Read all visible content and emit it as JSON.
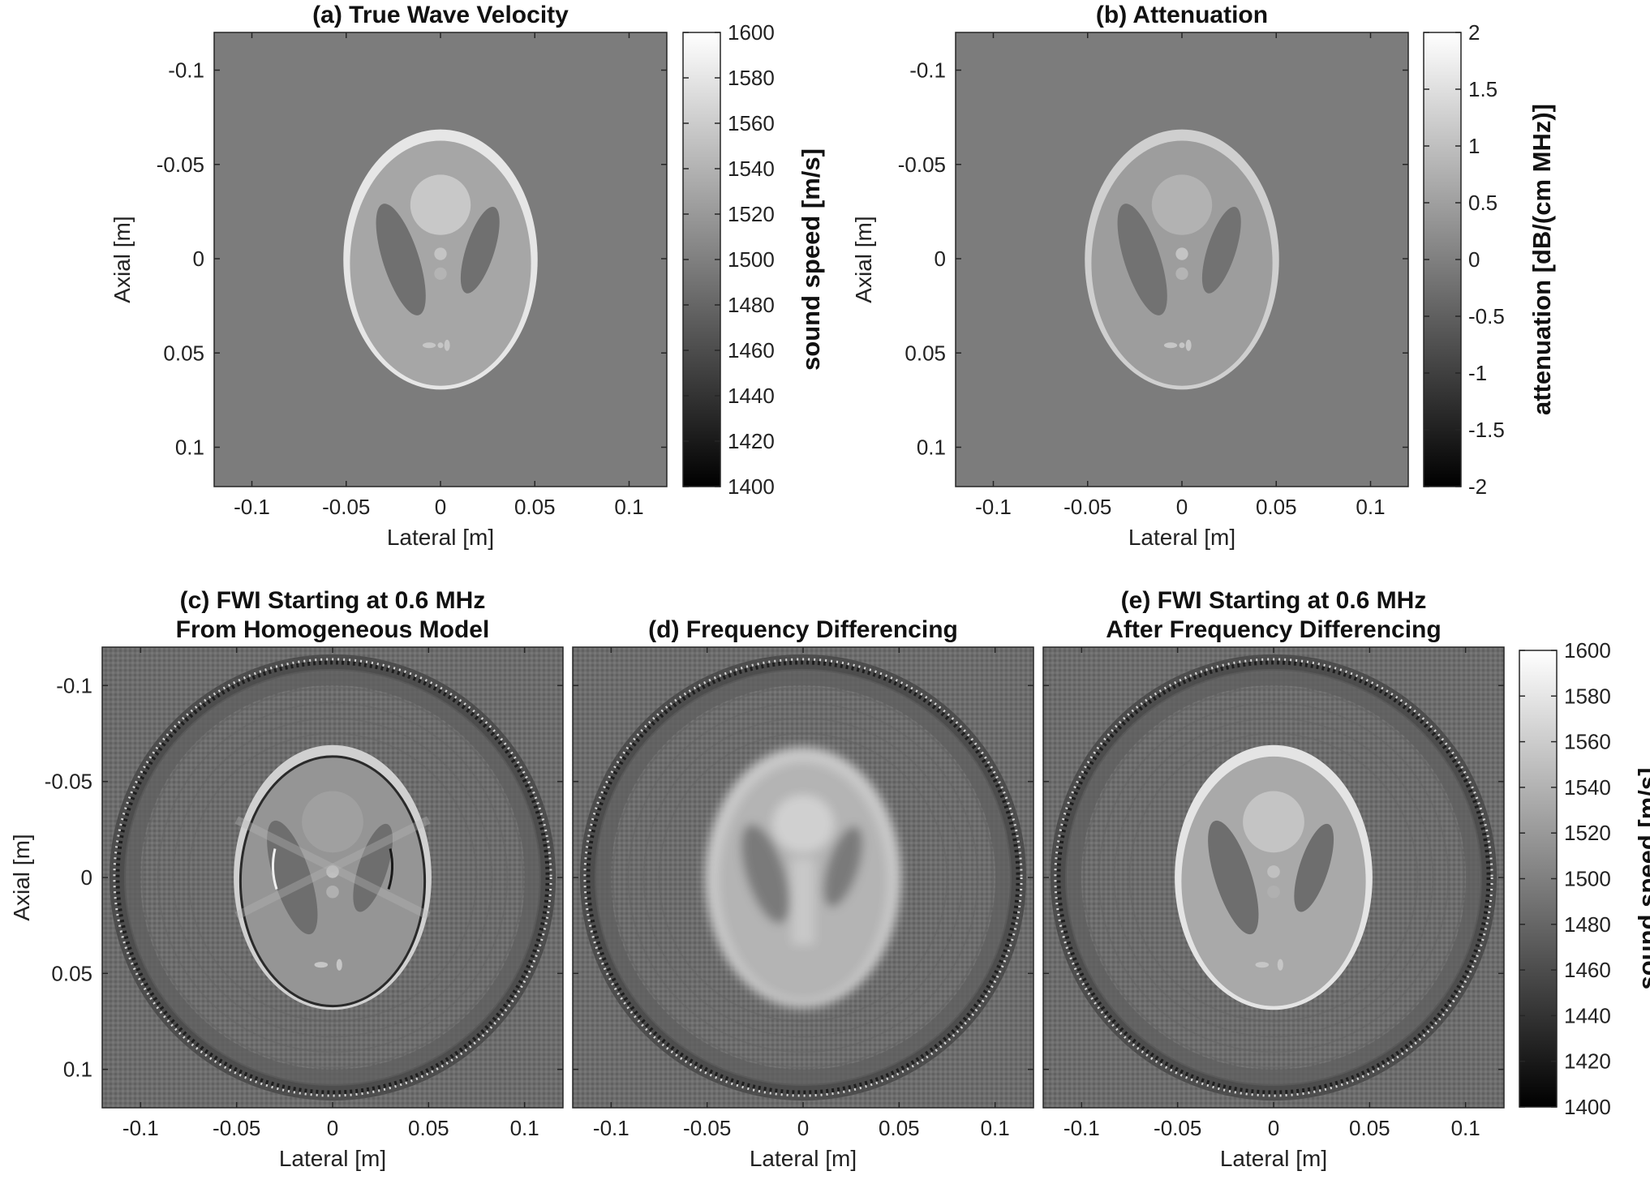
{
  "figure": {
    "panels": [
      {
        "id": "a",
        "title_lines": [
          "(a) True Wave Velocity"
        ],
        "xlabel": "Lateral [m]",
        "ylabel": "Axial [m]",
        "kind": "phantom-velocity"
      },
      {
        "id": "b",
        "title_lines": [
          "(b) Attenuation"
        ],
        "xlabel": "Lateral [m]",
        "ylabel": "Axial [m]",
        "kind": "phantom-attenuation"
      },
      {
        "id": "c",
        "title_lines": [
          "(c) FWI Starting at 0.6 MHz",
          "From Homogeneous Model"
        ],
        "xlabel": "Lateral [m]",
        "ylabel": "Axial [m]",
        "kind": "fwi-homogeneous"
      },
      {
        "id": "d",
        "title_lines": [
          "(d) Frequency Differencing"
        ],
        "xlabel": "Lateral [m]",
        "ylabel": "",
        "kind": "freq-diff"
      },
      {
        "id": "e",
        "title_lines": [
          "(e) FWI Starting at 0.6 MHz",
          "After Frequency Differencing"
        ],
        "xlabel": "Lateral [m]",
        "ylabel": "",
        "kind": "fwi-after-fd"
      }
    ],
    "x_ticks": [
      "-0.1",
      "-0.05",
      "0",
      "0.05",
      "0.1"
    ],
    "y_ticks": [
      "-0.1",
      "-0.05",
      "0",
      "0.05",
      "0.1"
    ],
    "colorbars": [
      {
        "id": "cb-a",
        "label": "sound speed [m/s]",
        "ticks": [
          "1600",
          "1580",
          "1560",
          "1540",
          "1520",
          "1500",
          "1480",
          "1460",
          "1440",
          "1420",
          "1400"
        ]
      },
      {
        "id": "cb-b",
        "label": "attenuation [dB/(cm MHz)]",
        "ticks": [
          "2",
          "1.5",
          "1",
          "0.5",
          "0",
          "-0.5",
          "-1",
          "-1.5",
          "-2"
        ]
      },
      {
        "id": "cb-e",
        "label": "sound speed [m/s]",
        "ticks": [
          "1600",
          "1580",
          "1560",
          "1540",
          "1520",
          "1500",
          "1480",
          "1460",
          "1440",
          "1420",
          "1400"
        ]
      }
    ]
  },
  "chart_data": [
    {
      "type": "heatmap",
      "title": "(a) True Wave Velocity",
      "xlabel": "Lateral [m]",
      "ylabel": "Axial [m]",
      "xlim": [
        -0.12,
        0.12
      ],
      "ylim": [
        -0.12,
        0.12
      ],
      "colormap": "gray",
      "clim": [
        1400,
        1600
      ],
      "colorbar_label": "sound speed [m/s]"
    },
    {
      "type": "heatmap",
      "title": "(b) Attenuation",
      "xlabel": "Lateral [m]",
      "ylabel": "Axial [m]",
      "xlim": [
        -0.12,
        0.12
      ],
      "ylim": [
        -0.12,
        0.12
      ],
      "colormap": "gray",
      "clim": [
        -2,
        2
      ],
      "colorbar_label": "attenuation [dB/(cm MHz)]"
    },
    {
      "type": "heatmap",
      "title": "(c) FWI Starting at 0.6 MHz From Homogeneous Model",
      "xlabel": "Lateral [m]",
      "ylabel": "Axial [m]",
      "xlim": [
        -0.12,
        0.12
      ],
      "ylim": [
        -0.12,
        0.12
      ],
      "colormap": "gray",
      "clim": [
        1400,
        1600
      ]
    },
    {
      "type": "heatmap",
      "title": "(d) Frequency Differencing",
      "xlabel": "Lateral [m]",
      "xlim": [
        -0.12,
        0.12
      ],
      "ylim": [
        -0.12,
        0.12
      ],
      "colormap": "gray",
      "clim": [
        1400,
        1600
      ]
    },
    {
      "type": "heatmap",
      "title": "(e) FWI Starting at 0.6 MHz After Frequency Differencing",
      "xlabel": "Lateral [m]",
      "xlim": [
        -0.12,
        0.12
      ],
      "ylim": [
        -0.12,
        0.12
      ],
      "colormap": "gray",
      "clim": [
        1400,
        1600
      ],
      "colorbar_label": "sound speed [m/s]"
    }
  ]
}
